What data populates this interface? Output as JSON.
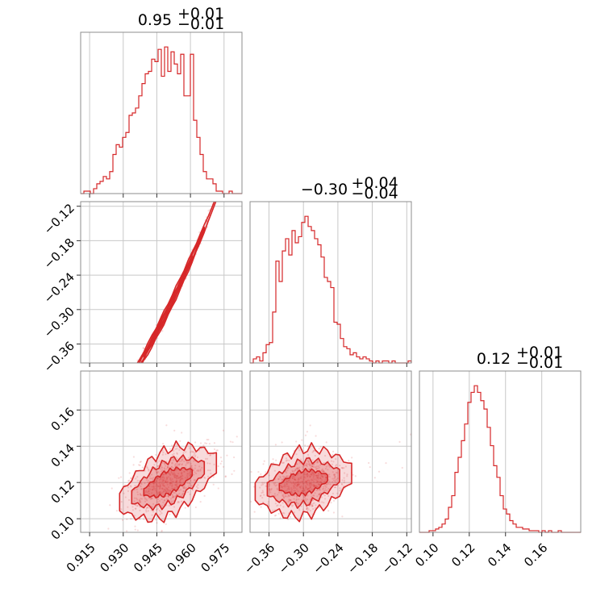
{
  "colors": {
    "series": "#d62728",
    "fill_light": "#f4b4b5",
    "fill_mid": "#ec8e90",
    "frame": "#8c8c8c",
    "grid": "#c8c8c8"
  },
  "chart_data": {
    "type": "corner",
    "parameters": [
      {
        "median": 0.95,
        "plus": 0.01,
        "minus": 0.01,
        "range": [
          0.911,
          0.983
        ],
        "ticks": [
          0.915,
          0.93,
          0.945,
          0.96,
          0.975
        ],
        "tick_labels": [
          "0.915",
          "0.930",
          "0.945",
          "0.960",
          "0.975"
        ],
        "title": {
          "main": "0.95",
          "sup": "+0.01",
          "sub": "−0.01"
        }
      },
      {
        "median": -0.3,
        "plus": 0.04,
        "minus": 0.04,
        "range": [
          -0.393,
          -0.112
        ],
        "ticks": [
          -0.36,
          -0.3,
          -0.24,
          -0.18,
          -0.12
        ],
        "tick_labels": [
          "−0.36",
          "−0.30",
          "−0.24",
          "−0.18",
          "−0.12"
        ],
        "title": {
          "main": "−0.30",
          "sup": "+0.04",
          "sub": "−0.04"
        }
      },
      {
        "median": 0.12,
        "plus": 0.01,
        "minus": 0.01,
        "range": [
          0.0925,
          0.1815
        ],
        "ticks": [
          0.1,
          0.12,
          0.14,
          0.16
        ],
        "tick_labels": [
          "0.10",
          "0.12",
          "0.14",
          "0.16"
        ],
        "title": {
          "main": "0.12",
          "sup": "+0.01",
          "sub": "−0.01"
        }
      }
    ],
    "hist_1d": [
      {
        "values": [
          0,
          1,
          1,
          0,
          2,
          4,
          5,
          7,
          6,
          9,
          16,
          20,
          19,
          23,
          25,
          32,
          33,
          35,
          40,
          45,
          49,
          50,
          55,
          54,
          59,
          48,
          60,
          50,
          58,
          53,
          49,
          57,
          40,
          40,
          57,
          30,
          23,
          16,
          9,
          6,
          6,
          4,
          1,
          1,
          0,
          0,
          1,
          0,
          0,
          0
        ]
      },
      {
        "values": [
          0,
          2,
          3,
          1,
          5,
          9,
          10,
          25,
          50,
          40,
          55,
          61,
          53,
          65,
          59,
          62,
          69,
          72,
          67,
          65,
          61,
          58,
          52,
          42,
          40,
          37,
          20,
          19,
          12,
          8,
          7,
          4,
          5,
          3,
          2,
          3,
          2,
          1,
          0,
          1,
          0,
          1,
          1,
          0,
          1,
          0,
          0,
          0,
          0,
          1
        ]
      },
      {
        "values": [
          0,
          0,
          0,
          1,
          1,
          2,
          3,
          5,
          8,
          15,
          22,
          36,
          45,
          55,
          65,
          78,
          84,
          88,
          84,
          79,
          74,
          63,
          52,
          40,
          33,
          22,
          14,
          11,
          7,
          5,
          3,
          3,
          2,
          2,
          1,
          1,
          1,
          0,
          1,
          0,
          1,
          0,
          0,
          1,
          0,
          0,
          0,
          0,
          0,
          0
        ]
      }
    ],
    "pairs": [
      {
        "x_param": 0,
        "y_param": 1,
        "relation": "y = -0.30 + 8.0*(x-0.95) + 45*(x-0.95)^2"
      },
      {
        "x_param": 0,
        "y_param": 2,
        "relation": "y = 0.12 + 0.5*(x-0.95)"
      },
      {
        "x_param": 1,
        "y_param": 2,
        "relation": "y = 0.12 + 0.06*(x+0.30)"
      }
    ]
  }
}
